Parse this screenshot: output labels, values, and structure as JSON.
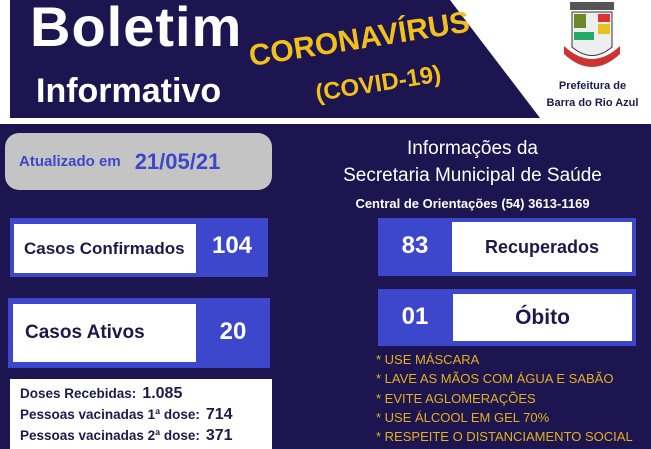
{
  "header": {
    "title_line1": "Boletim",
    "title_line2": "Informativo",
    "topic": "CORONAVÍRUS",
    "topic_sub": "(COVID-19)",
    "org_line1": "Prefeitura de",
    "org_line2": "Barra do Rio Azul"
  },
  "update": {
    "label": "Atualizado em",
    "date": "21/05/21"
  },
  "info": {
    "line1": "Informações da",
    "line2": "Secretaria Municipal de Saúde",
    "phone": "Central de Orientações (54) 3613-1169"
  },
  "stats": {
    "confirmed": {
      "label": "Casos Confirmados",
      "value": "104"
    },
    "recovered": {
      "label": "Recuperados",
      "value": "83"
    },
    "active": {
      "label": "Casos Ativos",
      "value": "20"
    },
    "deaths": {
      "label": "Óbito",
      "value": "01"
    }
  },
  "tips": [
    "* USE MÁSCARA",
    "* LAVE AS MÃOS COM ÁGUA E SABÃO",
    "* EVITE AGLOMERAÇÕES",
    "* USE ÁLCOOL EM GEL 70%",
    "* RESPEITE O DISTANCIAMENTO SOCIAL"
  ],
  "vaccination": [
    {
      "label": "Doses Recebidas:",
      "value": "1.085"
    },
    {
      "label": "Pessoas vacinadas 1ª dose:",
      "value": "714"
    },
    {
      "label": "Pessoas vacinadas 2ª dose:",
      "value": "371"
    }
  ],
  "colors": {
    "background": "#1d1550",
    "accent": "#3d47cc",
    "highlight": "#f2c01a"
  }
}
